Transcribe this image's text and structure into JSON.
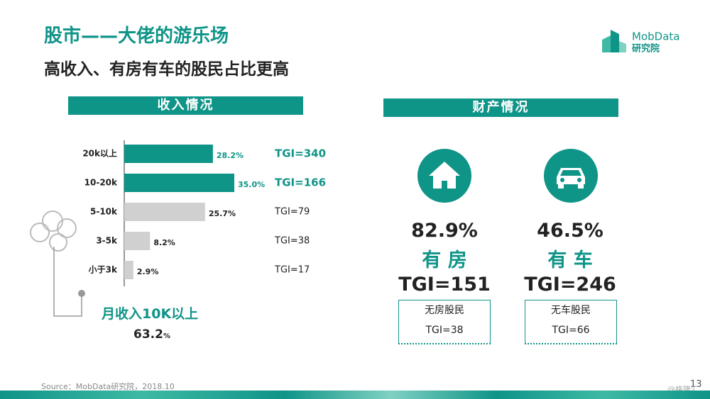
{
  "title": "股市——大佬的游乐场",
  "subtitle": "高收入、有房有车的股民占比更高",
  "logo": {
    "name": "MobData",
    "sub": "研究院"
  },
  "income_header": "收入情况",
  "property_header": "财产情况",
  "chart_data": {
    "type": "hbar",
    "categories": [
      "20k以上",
      "10-20k",
      "5-10k",
      "3-5k",
      "小于3k"
    ],
    "values": [
      28.2,
      35.0,
      25.7,
      8.2,
      2.9
    ],
    "value_labels": [
      "28.2%",
      "35.0%",
      "25.7%",
      "8.2%",
      "2.9%"
    ],
    "colors": [
      "#0f9488",
      "#0f9488",
      "#d0d0d0",
      "#d0d0d0",
      "#d0d0d0"
    ],
    "label_colors": [
      "#0f9488",
      "#0f9488",
      "#222222",
      "#222222",
      "#222222"
    ],
    "annotations": [
      "TGI=340",
      "TGI=166",
      "TGI=79",
      "TGI=38",
      "TGI=17"
    ]
  },
  "income_summary": {
    "label": "月收入10K以上",
    "value": "63.2",
    "unit": "%"
  },
  "property": [
    {
      "percent": "82.9%",
      "label": "有 房",
      "tgi": "TGI=151",
      "other_label": "无房股民",
      "other_tgi": "TGI=38"
    },
    {
      "percent": "46.5%",
      "label": "有 车",
      "tgi": "TGI=246",
      "other_label": "无车股民",
      "other_tgi": "TGI=66"
    }
  ],
  "source": "Source：MobData研究院，2018.10",
  "page_number": "13",
  "watermark": "@格隆汇"
}
